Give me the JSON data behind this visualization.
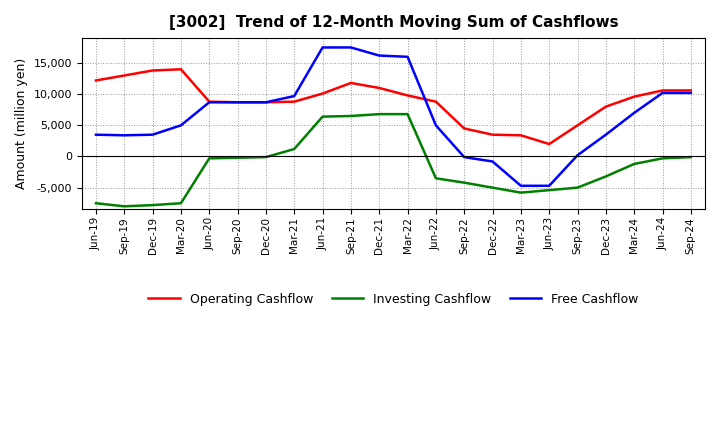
{
  "title": "[3002]  Trend of 12-Month Moving Sum of Cashflows",
  "ylabel": "Amount (million yen)",
  "x_labels": [
    "Jun-19",
    "Sep-19",
    "Dec-19",
    "Mar-20",
    "Jun-20",
    "Sep-20",
    "Dec-20",
    "Mar-21",
    "Jun-21",
    "Sep-21",
    "Dec-21",
    "Mar-22",
    "Jun-22",
    "Sep-22",
    "Dec-22",
    "Mar-23",
    "Jun-23",
    "Sep-23",
    "Dec-23",
    "Mar-24",
    "Jun-24",
    "Sep-24"
  ],
  "operating": [
    12200,
    13000,
    13800,
    14000,
    8800,
    8700,
    8700,
    8800,
    10100,
    11800,
    11000,
    9800,
    8800,
    4500,
    3500,
    3400,
    2000,
    5000,
    8000,
    9600,
    10600,
    10600
  ],
  "investing": [
    -7500,
    -8000,
    -7800,
    -7500,
    -300,
    -200,
    -100,
    1200,
    6400,
    6500,
    6800,
    6800,
    -3500,
    -4200,
    -5000,
    -5800,
    -5400,
    -5000,
    -3200,
    -1200,
    -300,
    -100
  ],
  "free": [
    3500,
    3400,
    3500,
    5000,
    8700,
    8700,
    8700,
    9700,
    17500,
    17500,
    16200,
    16000,
    5000,
    -100,
    -800,
    -4700,
    -4700,
    200,
    3500,
    7000,
    10200,
    10200
  ],
  "operating_color": "#ff0000",
  "investing_color": "#008000",
  "free_color": "#0000ff",
  "ylim": [
    -8500,
    19000
  ],
  "yticks": [
    -5000,
    0,
    5000,
    10000,
    15000
  ],
  "background_color": "#ffffff",
  "grid_color": "#999999"
}
